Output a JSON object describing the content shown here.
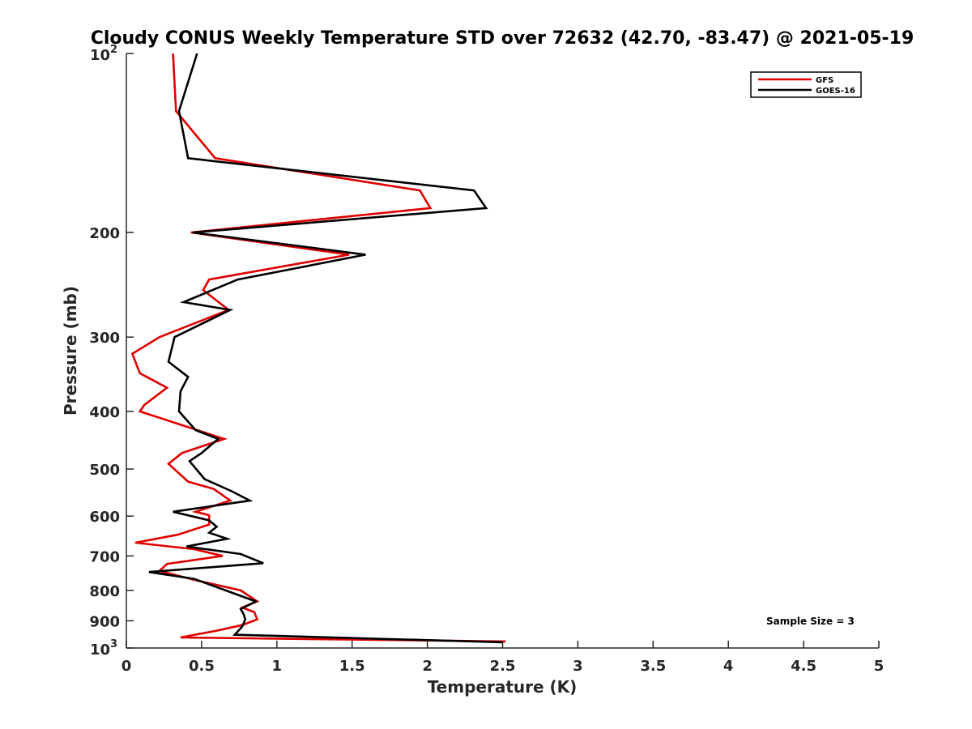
{
  "chart_data": {
    "type": "line",
    "title": "Cloudy CONUS Weekly Temperature STD over 72632 (42.70, -83.47) @ 2021-05-19",
    "xlabel": "Temperature (K)",
    "ylabel": "Pressure (mb)",
    "xlim": [
      0,
      5
    ],
    "ylim": [
      100,
      1000
    ],
    "y_scale": "log",
    "y_reversed": true,
    "x_ticks": [
      "0",
      "0.5",
      "1",
      "1.5",
      "2",
      "2.5",
      "3",
      "3.5",
      "4",
      "4.5",
      "5"
    ],
    "y_ticks": [
      {
        "value": 100,
        "base": "10",
        "exp": "2"
      },
      {
        "value": 200,
        "label": "200"
      },
      {
        "value": 300,
        "label": "300"
      },
      {
        "value": 400,
        "label": "400"
      },
      {
        "value": 500,
        "label": "500"
      },
      {
        "value": 600,
        "label": "600"
      },
      {
        "value": 700,
        "label": "700"
      },
      {
        "value": 800,
        "label": "800"
      },
      {
        "value": 900,
        "label": "900"
      },
      {
        "value": 1000,
        "base": "10",
        "exp": "3"
      }
    ],
    "grid": false,
    "legend_position": "top-right",
    "annotation": "Sample Size = 3",
    "series": [
      {
        "name": "GFS",
        "color": "#e00000",
        "points": [
          [
            0.31,
            100
          ],
          [
            0.33,
            125
          ],
          [
            0.59,
            150
          ],
          [
            1.95,
            170
          ],
          [
            2.02,
            182
          ],
          [
            0.43,
            200
          ],
          [
            1.48,
            218
          ],
          [
            0.55,
            240
          ],
          [
            0.51,
            250
          ],
          [
            0.68,
            270
          ],
          [
            0.22,
            300
          ],
          [
            0.04,
            320
          ],
          [
            0.09,
            345
          ],
          [
            0.27,
            365
          ],
          [
            0.12,
            390
          ],
          [
            0.09,
            400
          ],
          [
            0.65,
            445
          ],
          [
            0.37,
            470
          ],
          [
            0.28,
            490
          ],
          [
            0.41,
            525
          ],
          [
            0.58,
            540
          ],
          [
            0.69,
            565
          ],
          [
            0.46,
            590
          ],
          [
            0.55,
            598
          ],
          [
            0.55,
            620
          ],
          [
            0.34,
            645
          ],
          [
            0.06,
            665
          ],
          [
            0.45,
            682
          ],
          [
            0.64,
            700
          ],
          [
            0.27,
            722
          ],
          [
            0.22,
            742
          ],
          [
            0.47,
            770
          ],
          [
            0.76,
            800
          ],
          [
            0.87,
            835
          ],
          [
            0.77,
            855
          ],
          [
            0.85,
            870
          ],
          [
            0.87,
            895
          ],
          [
            0.77,
            915
          ],
          [
            0.6,
            935
          ],
          [
            0.36,
            960
          ],
          [
            2.52,
            975
          ]
        ]
      },
      {
        "name": "GOES-16",
        "color": "#000000",
        "points": [
          [
            0.47,
            100
          ],
          [
            0.35,
            125
          ],
          [
            0.41,
            150
          ],
          [
            2.31,
            170
          ],
          [
            2.39,
            182
          ],
          [
            0.44,
            200
          ],
          [
            1.59,
            218
          ],
          [
            0.74,
            240
          ],
          [
            0.38,
            262
          ],
          [
            0.69,
            270
          ],
          [
            0.32,
            300
          ],
          [
            0.28,
            330
          ],
          [
            0.41,
            350
          ],
          [
            0.36,
            370
          ],
          [
            0.35,
            400
          ],
          [
            0.46,
            430
          ],
          [
            0.61,
            445
          ],
          [
            0.5,
            470
          ],
          [
            0.42,
            485
          ],
          [
            0.52,
            520
          ],
          [
            0.7,
            545
          ],
          [
            0.82,
            565
          ],
          [
            0.31,
            590
          ],
          [
            0.55,
            610
          ],
          [
            0.6,
            625
          ],
          [
            0.55,
            640
          ],
          [
            0.67,
            655
          ],
          [
            0.4,
            675
          ],
          [
            0.76,
            695
          ],
          [
            0.91,
            720
          ],
          [
            0.15,
            745
          ],
          [
            0.45,
            765
          ],
          [
            0.66,
            800
          ],
          [
            0.86,
            835
          ],
          [
            0.76,
            860
          ],
          [
            0.78,
            878
          ],
          [
            0.79,
            895
          ],
          [
            0.77,
            920
          ],
          [
            0.72,
            950
          ],
          [
            2.5,
            978
          ]
        ]
      }
    ]
  }
}
